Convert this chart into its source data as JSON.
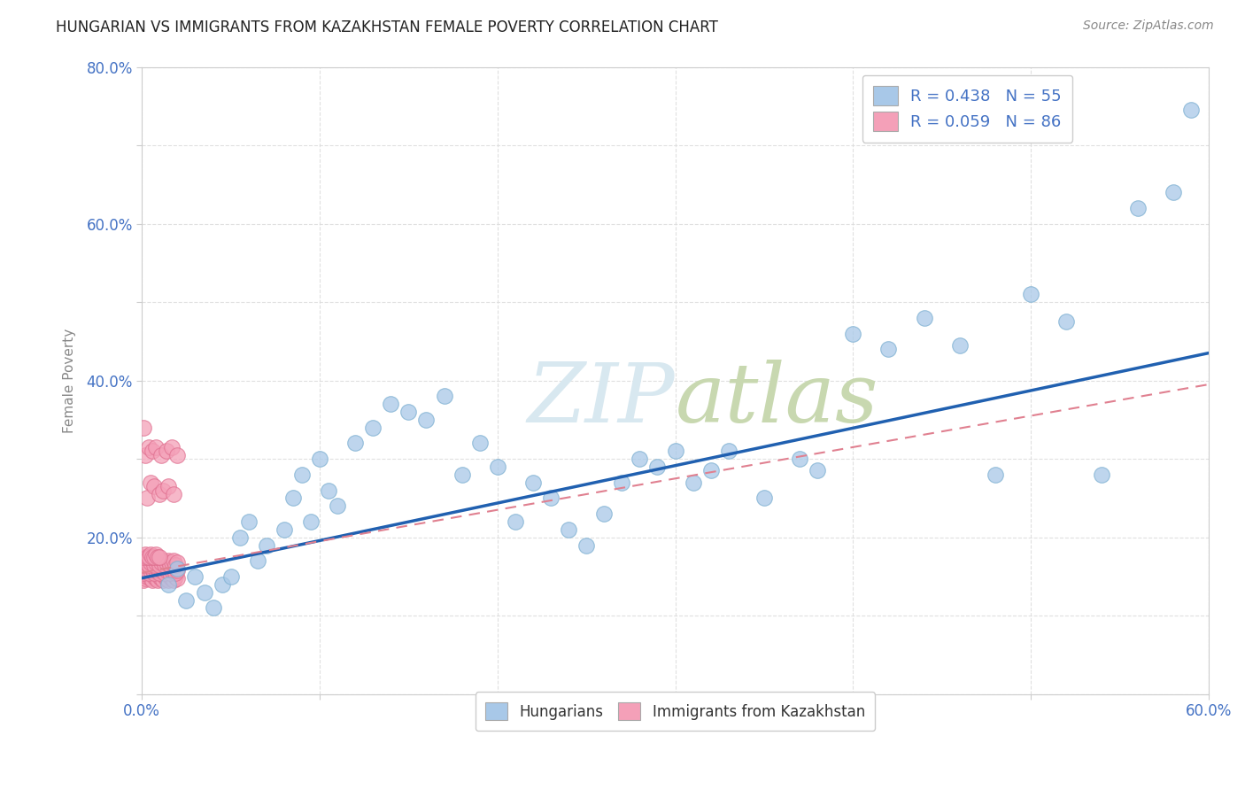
{
  "title": "HUNGARIAN VS IMMIGRANTS FROM KAZAKHSTAN FEMALE POVERTY CORRELATION CHART",
  "source": "Source: ZipAtlas.com",
  "ylabel": "Female Poverty",
  "xlim": [
    0.0,
    0.6
  ],
  "ylim": [
    0.0,
    0.8
  ],
  "xtick_positions": [
    0.0,
    0.1,
    0.2,
    0.3,
    0.4,
    0.5,
    0.6
  ],
  "xticklabels": [
    "0.0%",
    "",
    "",
    "",
    "",
    "",
    "60.0%"
  ],
  "ytick_positions": [
    0.0,
    0.1,
    0.2,
    0.3,
    0.4,
    0.5,
    0.6,
    0.7,
    0.8
  ],
  "yticklabels": [
    "",
    "",
    "20.0%",
    "",
    "40.0%",
    "",
    "60.0%",
    "",
    "80.0%"
  ],
  "blue_color": "#a8c8e8",
  "blue_edge_color": "#7aaed0",
  "pink_color": "#f4a0b8",
  "pink_edge_color": "#e07090",
  "blue_line_color": "#2060b0",
  "pink_line_color": "#e08090",
  "background_color": "#ffffff",
  "grid_color": "#dddddd",
  "tick_label_color": "#4472c4",
  "title_color": "#222222",
  "source_color": "#888888",
  "ylabel_color": "#888888",
  "watermark_color": "#d8e8f0",
  "blue_x": [
    0.015,
    0.02,
    0.025,
    0.03,
    0.035,
    0.04,
    0.045,
    0.05,
    0.055,
    0.06,
    0.065,
    0.07,
    0.08,
    0.085,
    0.09,
    0.095,
    0.1,
    0.105,
    0.11,
    0.12,
    0.13,
    0.14,
    0.15,
    0.16,
    0.17,
    0.18,
    0.19,
    0.2,
    0.21,
    0.22,
    0.23,
    0.24,
    0.25,
    0.26,
    0.27,
    0.28,
    0.29,
    0.3,
    0.31,
    0.32,
    0.33,
    0.35,
    0.37,
    0.38,
    0.4,
    0.42,
    0.44,
    0.46,
    0.48,
    0.5,
    0.52,
    0.54,
    0.56,
    0.58,
    0.59
  ],
  "blue_y": [
    0.14,
    0.16,
    0.12,
    0.15,
    0.13,
    0.11,
    0.14,
    0.15,
    0.2,
    0.22,
    0.17,
    0.19,
    0.21,
    0.25,
    0.28,
    0.22,
    0.3,
    0.26,
    0.24,
    0.32,
    0.34,
    0.37,
    0.36,
    0.35,
    0.38,
    0.28,
    0.32,
    0.29,
    0.22,
    0.27,
    0.25,
    0.21,
    0.19,
    0.23,
    0.27,
    0.3,
    0.29,
    0.31,
    0.27,
    0.285,
    0.31,
    0.25,
    0.3,
    0.285,
    0.46,
    0.44,
    0.48,
    0.445,
    0.28,
    0.51,
    0.475,
    0.28,
    0.62,
    0.64,
    0.745
  ],
  "pink_x": [
    0.001,
    0.002,
    0.003,
    0.004,
    0.005,
    0.006,
    0.007,
    0.008,
    0.009,
    0.01,
    0.011,
    0.012,
    0.013,
    0.014,
    0.015,
    0.016,
    0.017,
    0.018,
    0.019,
    0.02,
    0.001,
    0.002,
    0.003,
    0.004,
    0.005,
    0.006,
    0.007,
    0.008,
    0.009,
    0.01,
    0.011,
    0.012,
    0.013,
    0.014,
    0.015,
    0.016,
    0.017,
    0.018,
    0.019,
    0.02,
    0.001,
    0.002,
    0.003,
    0.004,
    0.005,
    0.006,
    0.007,
    0.008,
    0.009,
    0.01,
    0.011,
    0.012,
    0.013,
    0.014,
    0.015,
    0.016,
    0.017,
    0.018,
    0.019,
    0.02,
    0.001,
    0.002,
    0.003,
    0.004,
    0.005,
    0.006,
    0.007,
    0.008,
    0.009,
    0.01,
    0.003,
    0.005,
    0.007,
    0.01,
    0.012,
    0.015,
    0.018,
    0.002,
    0.004,
    0.006,
    0.008,
    0.011,
    0.014,
    0.017,
    0.02,
    0.001
  ],
  "pink_y": [
    0.145,
    0.148,
    0.15,
    0.152,
    0.148,
    0.145,
    0.15,
    0.148,
    0.145,
    0.15,
    0.148,
    0.145,
    0.15,
    0.148,
    0.145,
    0.15,
    0.148,
    0.145,
    0.15,
    0.148,
    0.155,
    0.158,
    0.16,
    0.155,
    0.158,
    0.16,
    0.155,
    0.158,
    0.16,
    0.155,
    0.158,
    0.16,
    0.155,
    0.158,
    0.16,
    0.155,
    0.158,
    0.16,
    0.155,
    0.158,
    0.165,
    0.168,
    0.17,
    0.165,
    0.168,
    0.17,
    0.165,
    0.168,
    0.17,
    0.165,
    0.168,
    0.17,
    0.165,
    0.168,
    0.17,
    0.165,
    0.168,
    0.17,
    0.165,
    0.168,
    0.175,
    0.178,
    0.175,
    0.175,
    0.178,
    0.175,
    0.175,
    0.178,
    0.175,
    0.175,
    0.25,
    0.27,
    0.265,
    0.255,
    0.26,
    0.265,
    0.255,
    0.305,
    0.315,
    0.31,
    0.315,
    0.305,
    0.31,
    0.315,
    0.305,
    0.34
  ],
  "blue_line_x0": 0.0,
  "blue_line_y0": 0.148,
  "blue_line_x1": 0.6,
  "blue_line_y1": 0.435,
  "pink_line_x0": 0.0,
  "pink_line_y0": 0.155,
  "pink_line_x1": 0.6,
  "pink_line_y1": 0.395
}
